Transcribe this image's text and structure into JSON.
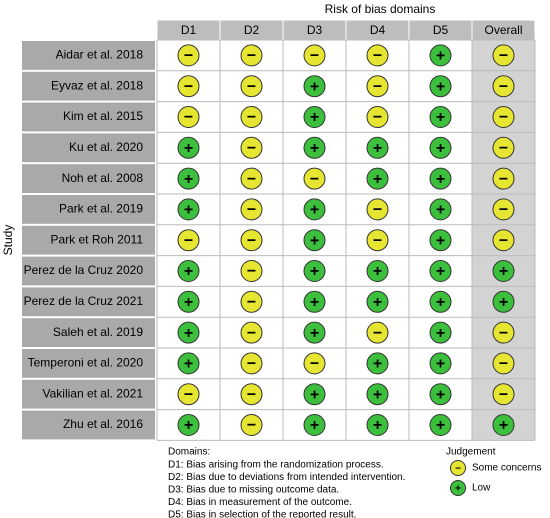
{
  "title": "Risk of bias domains",
  "y_label": "Study",
  "columns": [
    "D1",
    "D2",
    "D3",
    "D4",
    "D5",
    "Overall"
  ],
  "rows": [
    {
      "study": "Aidar et al. 2018",
      "judgements": [
        "−",
        "−",
        "−",
        "−",
        "+",
        "−"
      ]
    },
    {
      "study": "Eyvaz et al. 2018",
      "judgements": [
        "−",
        "−",
        "+",
        "−",
        "+",
        "−"
      ]
    },
    {
      "study": "Kim et al. 2015",
      "judgements": [
        "−",
        "−",
        "+",
        "−",
        "+",
        "−"
      ]
    },
    {
      "study": "Ku et al. 2020",
      "judgements": [
        "+",
        "−",
        "+",
        "+",
        "+",
        "−"
      ]
    },
    {
      "study": "Noh et al. 2008",
      "judgements": [
        "+",
        "−",
        "−",
        "+",
        "+",
        "−"
      ]
    },
    {
      "study": "Park et al. 2019",
      "judgements": [
        "+",
        "−",
        "+",
        "−",
        "+",
        "−"
      ]
    },
    {
      "study": "Park et Roh 2011",
      "judgements": [
        "−",
        "−",
        "+",
        "−",
        "+",
        "−"
      ]
    },
    {
      "study": "Perez de la Cruz 2020",
      "judgements": [
        "+",
        "−",
        "+",
        "+",
        "+",
        "+"
      ]
    },
    {
      "study": "Perez de la Cruz 2021",
      "judgements": [
        "+",
        "−",
        "+",
        "+",
        "+",
        "+"
      ]
    },
    {
      "study": "Saleh et al. 2019",
      "judgements": [
        "+",
        "−",
        "+",
        "−",
        "+",
        "−"
      ]
    },
    {
      "study": "Temperoni et al. 2020",
      "judgements": [
        "+",
        "−",
        "−",
        "+",
        "+",
        "−"
      ]
    },
    {
      "study": "Vakilian et al. 2021",
      "judgements": [
        "−",
        "−",
        "+",
        "+",
        "+",
        "−"
      ]
    },
    {
      "study": "Zhu et al. 2016",
      "judgements": [
        "+",
        "−",
        "+",
        "+",
        "+",
        "+"
      ]
    }
  ],
  "domains": {
    "heading": "Domains:",
    "items": [
      "D1: Bias arising from the randomization process.",
      "D2: Bias due to deviations from intended intervention.",
      "D3: Bias due to missing outcome data.",
      "D4: Bias in measurement of the outcome.",
      "D5: Bias in selection of the reported result."
    ]
  },
  "legend": {
    "title": "Judgement",
    "items": [
      {
        "symbol": "−",
        "label": "Some concerns",
        "color": "#e6e632"
      },
      {
        "symbol": "+",
        "label": "Low",
        "color": "#3cbf3c"
      }
    ]
  }
}
